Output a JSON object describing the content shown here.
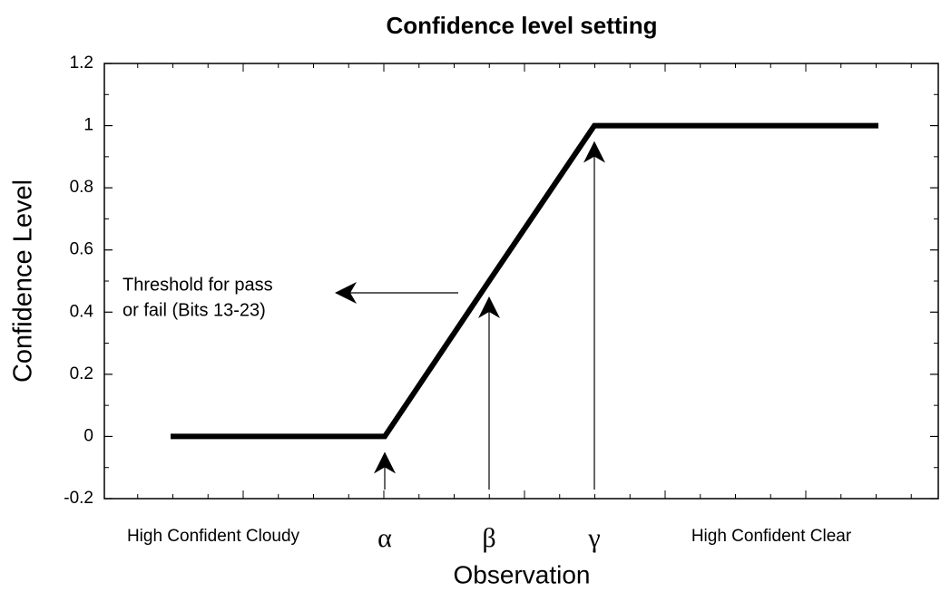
{
  "chart_data": {
    "type": "line",
    "title": "Confidence level setting",
    "x_label": "Observation",
    "y_label": "Confidence Level",
    "categories": [
      "High Confident Cloudy",
      "α",
      "β",
      "γ",
      "High Confident Clear"
    ],
    "series": [
      {
        "name": "Confidence",
        "color": "#000000",
        "values": [
          0,
          0,
          0.5,
          1,
          1
        ]
      }
    ],
    "ylim": [
      -0.2,
      1.2
    ],
    "yticks": [
      -0.2,
      0,
      0.2,
      0.4,
      0.6,
      0.8,
      1,
      1.2
    ],
    "annotation": [
      "Threshold for pass",
      "or fail (Bits 13-23)"
    ]
  }
}
